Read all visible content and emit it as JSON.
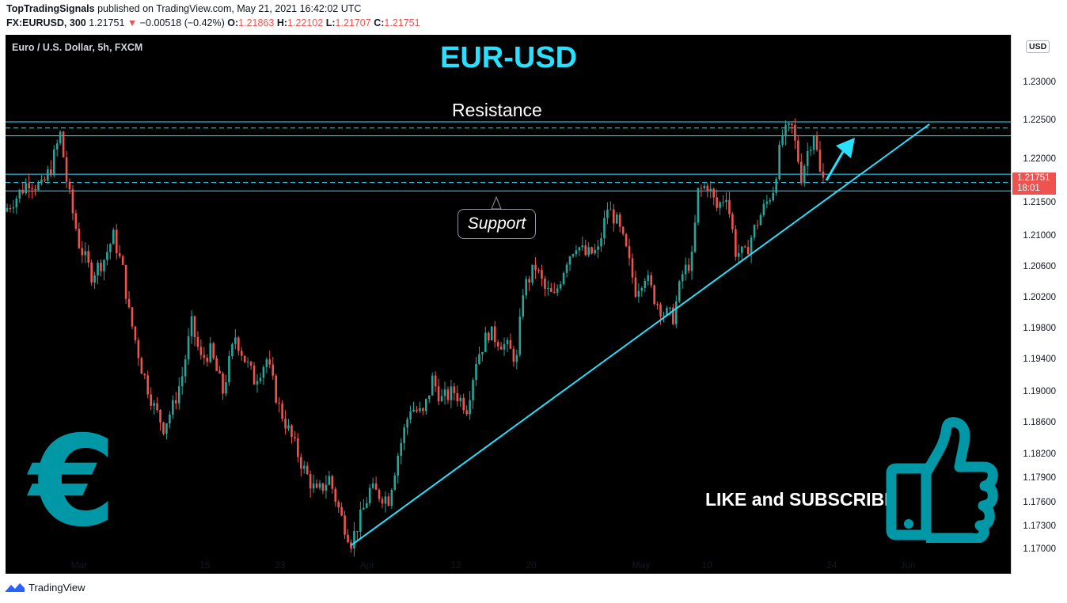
{
  "header": {
    "author": "TopTradingSignals",
    "published": "published on TradingView.com, May 21, 2021 16:42:02 UTC",
    "symbol_line": "FX:EURUSD, 300",
    "last": "1.21751",
    "arrow": "▼",
    "change": "−0.00518 (−0.42%)",
    "o_label": "O:",
    "o_value": "1.21863",
    "h_label": "H:",
    "h_value": "1.22102",
    "l_label": "L:",
    "l_value": "1.21707",
    "c_label": "C:",
    "c_value": "1.21751"
  },
  "chart_data": {
    "type": "candlestick",
    "title": "EUR-USD",
    "symbol_label": "Euro / U.S. Dollar, 5h, FXCM",
    "currency": "USD",
    "y_ticks": [
      "1.23000",
      "1.22500",
      "1.22000",
      "1.21500",
      "1.21000",
      "1.20600",
      "1.20200",
      "1.19800",
      "1.19400",
      "1.19000",
      "1.18600",
      "1.18200",
      "1.17900",
      "1.17600",
      "1.17300",
      "1.17000"
    ],
    "y_tick_values": [
      1.23,
      1.225,
      1.22,
      1.215,
      1.21,
      1.206,
      1.202,
      1.198,
      1.194,
      1.19,
      1.186,
      1.182,
      1.179,
      1.176,
      1.173,
      1.17
    ],
    "x_ticks": [
      "Mar",
      "15",
      "23",
      "Apr",
      "12",
      "20",
      "May",
      "10",
      "24",
      "Jun"
    ],
    "last_price": "1.21751",
    "countdown": "18:01",
    "annotations": {
      "resistance": "Resistance",
      "support": "Support",
      "cta": "LIKE and SUBSCRIBE"
    },
    "path_points": [
      {
        "i": 0,
        "p": 1.2135
      },
      {
        "i": 3,
        "p": 1.215
      },
      {
        "i": 8,
        "p": 1.2175
      },
      {
        "i": 12,
        "p": 1.2165
      },
      {
        "i": 15,
        "p": 1.219
      },
      {
        "i": 18,
        "p": 1.2232
      },
      {
        "i": 20,
        "p": 1.2175
      },
      {
        "i": 24,
        "p": 1.209
      },
      {
        "i": 28,
        "p": 1.205
      },
      {
        "i": 32,
        "p": 1.207
      },
      {
        "i": 35,
        "p": 1.21
      },
      {
        "i": 38,
        "p": 1.2055
      },
      {
        "i": 40,
        "p": 1.2
      },
      {
        "i": 44,
        "p": 1.193
      },
      {
        "i": 48,
        "p": 1.188
      },
      {
        "i": 51,
        "p": 1.1855
      },
      {
        "i": 54,
        "p": 1.188
      },
      {
        "i": 57,
        "p": 1.192
      },
      {
        "i": 60,
        "p": 1.1985
      },
      {
        "i": 63,
        "p": 1.194
      },
      {
        "i": 66,
        "p": 1.195
      },
      {
        "i": 70,
        "p": 1.19
      },
      {
        "i": 74,
        "p": 1.197
      },
      {
        "i": 77,
        "p": 1.194
      },
      {
        "i": 80,
        "p": 1.1915
      },
      {
        "i": 84,
        "p": 1.194
      },
      {
        "i": 88,
        "p": 1.188
      },
      {
        "i": 92,
        "p": 1.184
      },
      {
        "i": 96,
        "p": 1.18
      },
      {
        "i": 100,
        "p": 1.177
      },
      {
        "i": 104,
        "p": 1.179
      },
      {
        "i": 108,
        "p": 1.174
      },
      {
        "i": 111,
        "p": 1.171
      },
      {
        "i": 114,
        "p": 1.174
      },
      {
        "i": 117,
        "p": 1.1775
      },
      {
        "i": 120,
        "p": 1.177
      },
      {
        "i": 123,
        "p": 1.1765
      },
      {
        "i": 126,
        "p": 1.182
      },
      {
        "i": 130,
        "p": 1.188
      },
      {
        "i": 134,
        "p": 1.187
      },
      {
        "i": 137,
        "p": 1.1915
      },
      {
        "i": 140,
        "p": 1.189
      },
      {
        "i": 144,
        "p": 1.19
      },
      {
        "i": 148,
        "p": 1.188
      },
      {
        "i": 151,
        "p": 1.194
      },
      {
        "i": 155,
        "p": 1.1975
      },
      {
        "i": 158,
        "p": 1.1965
      },
      {
        "i": 161,
        "p": 1.1955
      },
      {
        "i": 164,
        "p": 1.194
      },
      {
        "i": 166,
        "p": 1.203
      },
      {
        "i": 170,
        "p": 1.206
      },
      {
        "i": 173,
        "p": 1.203
      },
      {
        "i": 176,
        "p": 1.202
      },
      {
        "i": 180,
        "p": 1.207
      },
      {
        "i": 183,
        "p": 1.209
      },
      {
        "i": 186,
        "p": 1.2075
      },
      {
        "i": 190,
        "p": 1.208
      },
      {
        "i": 193,
        "p": 1.214
      },
      {
        "i": 196,
        "p": 1.212
      },
      {
        "i": 199,
        "p": 1.208
      },
      {
        "i": 202,
        "p": 1.203
      },
      {
        "i": 205,
        "p": 1.205
      },
      {
        "i": 208,
        "p": 1.202
      },
      {
        "i": 211,
        "p": 1.2
      },
      {
        "i": 214,
        "p": 1.1995
      },
      {
        "i": 217,
        "p": 1.205
      },
      {
        "i": 220,
        "p": 1.207
      },
      {
        "i": 222,
        "p": 1.216
      },
      {
        "i": 225,
        "p": 1.217
      },
      {
        "i": 228,
        "p": 1.214
      },
      {
        "i": 231,
        "p": 1.216
      },
      {
        "i": 234,
        "p": 1.208
      },
      {
        "i": 237,
        "p": 1.2075
      },
      {
        "i": 240,
        "p": 1.211
      },
      {
        "i": 243,
        "p": 1.214
      },
      {
        "i": 246,
        "p": 1.2165
      },
      {
        "i": 249,
        "p": 1.223
      },
      {
        "i": 252,
        "p": 1.224
      },
      {
        "i": 255,
        "p": 1.218
      },
      {
        "i": 257,
        "p": 1.221
      },
      {
        "i": 259,
        "p": 1.2235
      },
      {
        "i": 261,
        "p": 1.2182
      },
      {
        "i": 262,
        "p": 1.2175
      }
    ],
    "levels": {
      "resistance_zone": [
        1.223,
        1.2248
      ],
      "resistance_mid": 1.224,
      "support_zone": [
        1.2162,
        1.2182
      ],
      "support_mid": 1.2172
    },
    "trendline": [
      {
        "i": 110,
        "p": 1.1705
      },
      {
        "i": 295,
        "p": 1.2245
      }
    ],
    "colors": {
      "up": "#26a69a",
      "down": "#ef5350",
      "lines": "#28e0ff",
      "accent": "#0097a7"
    }
  },
  "footer": {
    "brand": "TradingView"
  }
}
